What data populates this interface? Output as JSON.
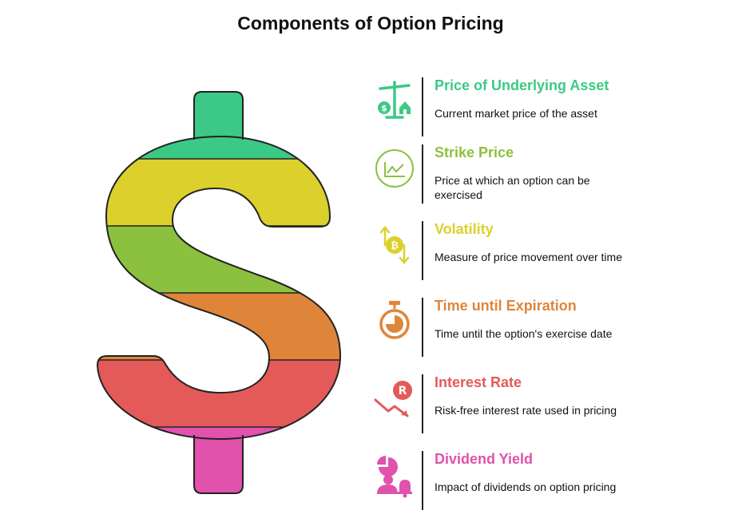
{
  "title": "Components of Option Pricing",
  "colors": {
    "green": "#3cc985",
    "yellow": "#dcd02d",
    "lime": "#8cc13f",
    "orange": "#df853a",
    "red": "#e35a59",
    "pink": "#e052ab"
  },
  "components": [
    {
      "heading": "Price of Underlying Asset",
      "description": "Current market price of the asset",
      "color": "#3cc985",
      "icon": "scale-icon"
    },
    {
      "heading": "Strike Price",
      "description": "Price at which an option can be exercised",
      "color": "#8cc13f",
      "icon": "line-chart-icon"
    },
    {
      "heading": "Volatility",
      "description": "Measure of price movement over time",
      "color": "#dcd02d",
      "icon": "bitcoin-arrows-icon"
    },
    {
      "heading": "Time until Expiration",
      "description": "Time until the option's exercise date",
      "color": "#df853a",
      "icon": "stopwatch-icon"
    },
    {
      "heading": "Interest Rate",
      "description": "Risk-free interest rate used in pricing",
      "color": "#e35a59",
      "icon": "rupee-down-arrow-icon"
    },
    {
      "heading": "Dividend Yield",
      "description": "Impact of dividends on option pricing",
      "color": "#e052ab",
      "icon": "pie-person-bell-icon"
    }
  ]
}
